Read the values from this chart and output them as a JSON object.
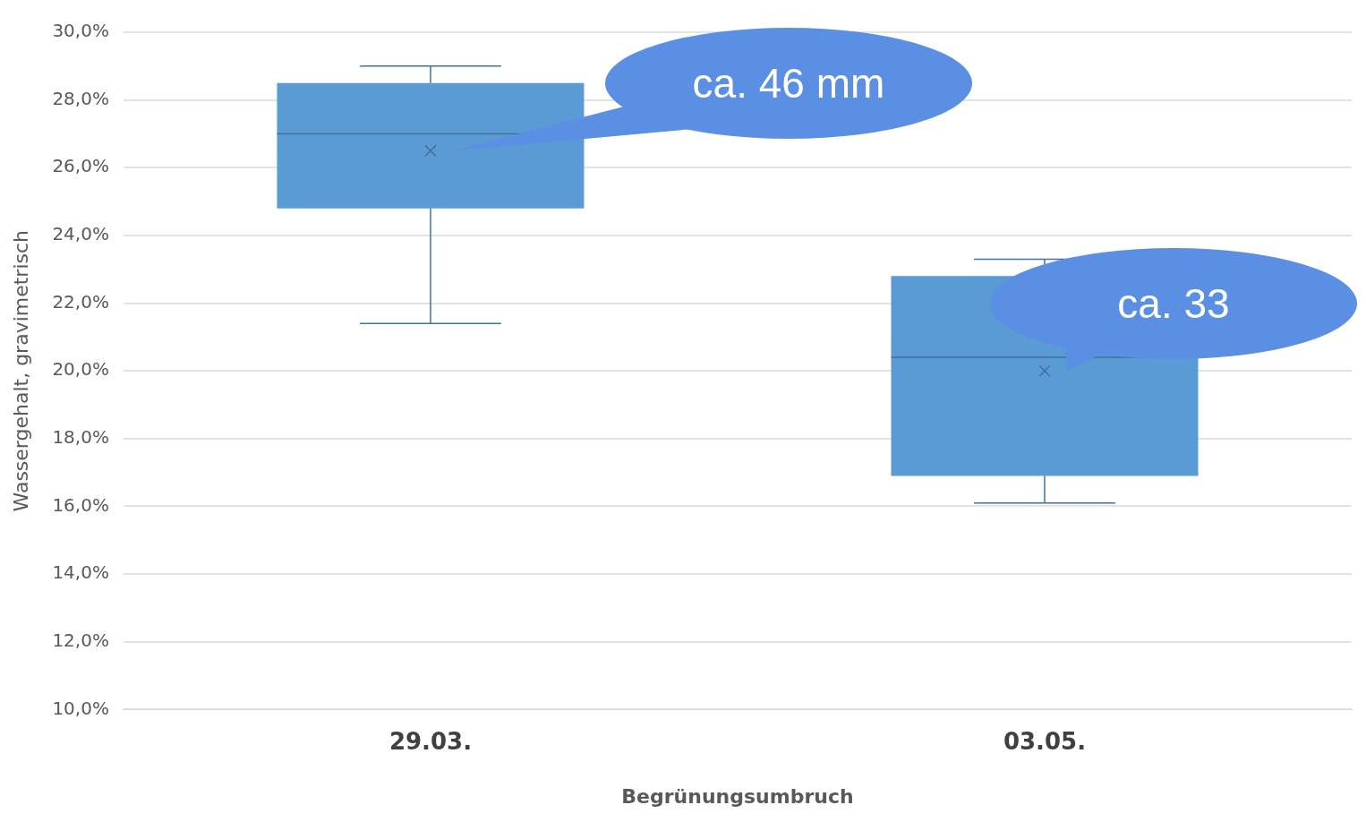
{
  "chart_data": {
    "type": "box",
    "xlabel": "Begrünungsumbruch",
    "ylabel": "Wassergehalt, gravimetrisch",
    "categories": [
      "29.03.",
      "03.05."
    ],
    "color": "#5b9bd5",
    "boxes": [
      {
        "low": 21.4,
        "q1": 24.8,
        "median": 27.0,
        "q3": 28.5,
        "high": 29.0,
        "mean": 26.5
      },
      {
        "low": 16.1,
        "q1": 16.9,
        "median": 20.4,
        "q3": 22.8,
        "high": 23.3,
        "mean": 20.0
      }
    ],
    "ylim": [
      10,
      30
    ],
    "yticks": [
      {
        "value": 10,
        "label": "10,0%"
      },
      {
        "value": 12,
        "label": "12,0%"
      },
      {
        "value": 14,
        "label": "14,0%"
      },
      {
        "value": 16,
        "label": "16,0%"
      },
      {
        "value": 18,
        "label": "18,0%"
      },
      {
        "value": 20,
        "label": "20,0%"
      },
      {
        "value": 22,
        "label": "22,0%"
      },
      {
        "value": 24,
        "label": "24,0%"
      },
      {
        "value": 26,
        "label": "26,0%"
      },
      {
        "value": 28,
        "label": "28,0%"
      },
      {
        "value": 30,
        "label": "30,0%"
      }
    ],
    "grid": "y",
    "legend": false,
    "annotations": [
      "ca. 46 mm",
      "ca. 33"
    ]
  }
}
